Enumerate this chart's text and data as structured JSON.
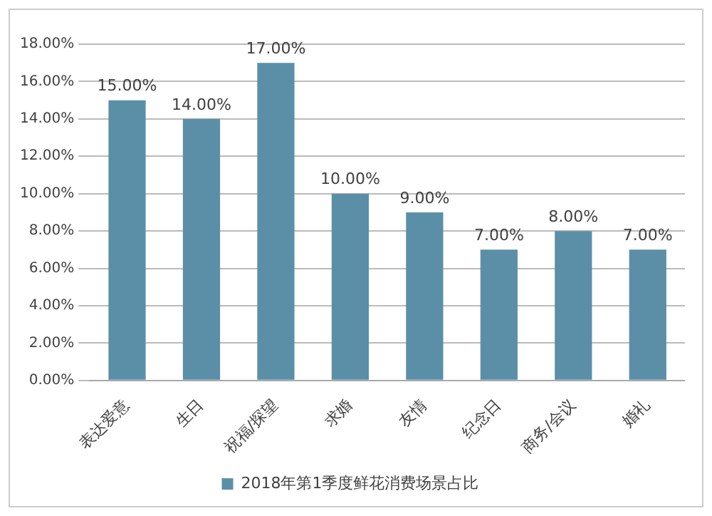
{
  "chart_data": {
    "type": "bar",
    "categories": [
      "表达爱意",
      "生日",
      "祝福/探望",
      "求婚",
      "友情",
      "纪念日",
      "商务/会议",
      "婚礼"
    ],
    "series": [
      {
        "name": "2018年第1季度鲜花消费场景占比",
        "color": "#5b8fa8",
        "values": [
          15,
          14,
          17,
          10,
          9,
          7,
          8,
          7
        ],
        "value_labels": [
          "15.00%",
          "14.00%",
          "17.00%",
          "10.00%",
          "9.00%",
          "7.00%",
          "8.00%",
          "7.00%"
        ]
      }
    ],
    "ylim": [
      0,
      18
    ],
    "yticks": [
      {
        "value": 0,
        "label": "0.00%"
      },
      {
        "value": 2,
        "label": "2.00%"
      },
      {
        "value": 4,
        "label": "4.00%"
      },
      {
        "value": 6,
        "label": "6.00%"
      },
      {
        "value": 8,
        "label": "8.00%"
      },
      {
        "value": 10,
        "label": "10.00%"
      },
      {
        "value": 12,
        "label": "12.00%"
      },
      {
        "value": 14,
        "label": "14.00%"
      },
      {
        "value": 16,
        "label": "16.00%"
      },
      {
        "value": 18,
        "label": "18.00%"
      }
    ],
    "grid": "y",
    "legend": "bottom"
  }
}
